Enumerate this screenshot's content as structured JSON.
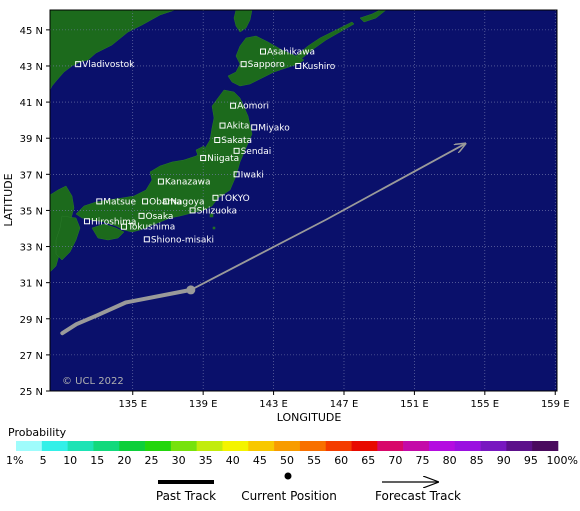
{
  "map": {
    "colors": {
      "ocean": "#0a106b",
      "land": "#1c6a1c",
      "grid": "#7a7fb0",
      "track": "#9a9a9a",
      "city_marker": "#ffffff"
    },
    "x_axis": {
      "title": "LONGITUDE",
      "ticks": [
        {
          "lon": 135,
          "label": "135 E"
        },
        {
          "lon": 139,
          "label": "139 E"
        },
        {
          "lon": 143,
          "label": "143 E"
        },
        {
          "lon": 147,
          "label": "147 E"
        },
        {
          "lon": 151,
          "label": "151 E"
        },
        {
          "lon": 155,
          "label": "155 E"
        },
        {
          "lon": 159,
          "label": "159 E"
        }
      ]
    },
    "y_axis": {
      "title": "LATITUDE",
      "ticks": [
        {
          "lat": 25,
          "label": "25 N"
        },
        {
          "lat": 27,
          "label": "27 N"
        },
        {
          "lat": 29,
          "label": "29 N"
        },
        {
          "lat": 31,
          "label": "31 N"
        },
        {
          "lat": 33,
          "label": "33 N"
        },
        {
          "lat": 35,
          "label": "35 N"
        },
        {
          "lat": 37,
          "label": "37 N"
        },
        {
          "lat": 39,
          "label": "39 N"
        },
        {
          "lat": 41,
          "label": "41 N"
        },
        {
          "lat": 43,
          "label": "43 N"
        },
        {
          "lat": 45,
          "label": "45 N"
        }
      ]
    },
    "copyright": "© UCL 2022",
    "cities": [
      {
        "name": "Vladivostok",
        "lon": 131.9,
        "lat": 43.1
      },
      {
        "name": "Asahikawa",
        "lon": 142.4,
        "lat": 43.8
      },
      {
        "name": "Sapporo",
        "lon": 141.3,
        "lat": 43.1
      },
      {
        "name": "Kushiro",
        "lon": 144.4,
        "lat": 43.0
      },
      {
        "name": "Aomori",
        "lon": 140.7,
        "lat": 40.8
      },
      {
        "name": "Akita",
        "lon": 140.1,
        "lat": 39.7
      },
      {
        "name": "Miyako",
        "lon": 141.9,
        "lat": 39.6
      },
      {
        "name": "Sakata",
        "lon": 139.8,
        "lat": 38.9
      },
      {
        "name": "Sendai",
        "lon": 140.9,
        "lat": 38.3
      },
      {
        "name": "Niigata",
        "lon": 139.0,
        "lat": 37.9
      },
      {
        "name": "Iwaki",
        "lon": 140.9,
        "lat": 37.0
      },
      {
        "name": "Kanazawa",
        "lon": 136.6,
        "lat": 36.6
      },
      {
        "name": "Nagoya",
        "lon": 136.9,
        "lat": 35.5
      },
      {
        "name": "Matsue",
        "lon": 133.1,
        "lat": 35.5
      },
      {
        "name": "Obama",
        "lon": 135.7,
        "lat": 35.5
      },
      {
        "name": "TOKYO",
        "lon": 139.7,
        "lat": 35.7
      },
      {
        "name": "Hiroshima",
        "lon": 132.4,
        "lat": 34.4
      },
      {
        "name": "Shizuoka",
        "lon": 138.4,
        "lat": 35.0
      },
      {
        "name": "Osaka",
        "lon": 135.5,
        "lat": 34.7
      },
      {
        "name": "Tokushima",
        "lon": 134.5,
        "lat": 34.1
      },
      {
        "name": "Shiono-misaki",
        "lon": 135.8,
        "lat": 33.4
      }
    ],
    "past_track": [
      {
        "lon": 131.0,
        "lat": 28.2
      },
      {
        "lon": 131.8,
        "lat": 28.7
      },
      {
        "lon": 133.0,
        "lat": 29.2
      },
      {
        "lon": 134.6,
        "lat": 29.9
      },
      {
        "lon": 138.3,
        "lat": 30.6
      }
    ],
    "current_position": {
      "lon": 138.3,
      "lat": 30.6
    },
    "forecast_track": [
      {
        "lon": 138.3,
        "lat": 30.6
      },
      {
        "lon": 146.0,
        "lat": 34.5
      },
      {
        "lon": 153.9,
        "lat": 38.7
      }
    ]
  },
  "colorbar": {
    "title": "Probability",
    "labels": [
      "1%",
      "5",
      "10",
      "15",
      "20",
      "25",
      "30",
      "35",
      "40",
      "45",
      "50",
      "55",
      "60",
      "65",
      "70",
      "75",
      "80",
      "85",
      "90",
      "95",
      "100%"
    ],
    "colors": [
      "#9ffcfc",
      "#33f0e8",
      "#1de3b5",
      "#12d97c",
      "#0ccf3a",
      "#22d60c",
      "#77e20c",
      "#c2ec0c",
      "#f4f400",
      "#f8c800",
      "#f89c00",
      "#f87000",
      "#f43c00",
      "#e80a00",
      "#d8086a",
      "#c40aa8",
      "#b40ce0",
      "#9a10e0",
      "#7818c0",
      "#5c108a",
      "#4a0a5e"
    ]
  },
  "legend": {
    "past_track": "Past Track",
    "current_position": "Current Position",
    "forecast_track": "Forecast Track"
  }
}
